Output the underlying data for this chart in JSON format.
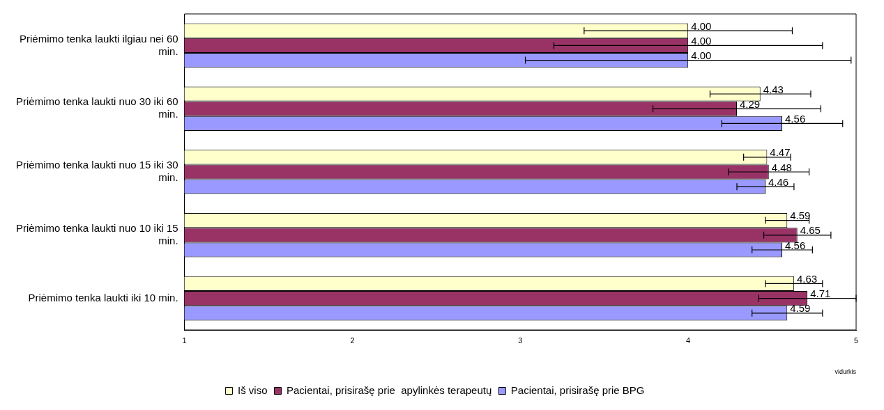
{
  "chart_data": {
    "type": "bar",
    "orientation": "horizontal",
    "xlabel": "vidurkis",
    "categories": [
      "Priėmimo tenka laukti ilgiau nei 60 min.",
      "Priėmimo tenka laukti nuo 30 iki 60 min.",
      "Priėmimo tenka laukti nuo 15 iki 30 min.",
      "Priėmimo tenka laukti nuo 10 iki 15 min.",
      "Priėmimo tenka laukti iki 10 min."
    ],
    "series": [
      {
        "name": "Pacientai, prisirašę prie BPG",
        "color": "#9999ff",
        "values": [
          4.0,
          4.56,
          4.46,
          4.56,
          4.59
        ],
        "value_labels": [
          "4.00",
          "4.56",
          "4.46",
          "4.56",
          "4.59"
        ],
        "errors": [
          0.97,
          0.36,
          0.17,
          0.18,
          0.21
        ]
      },
      {
        "name": "Pacientai, prisirašę prie  apylinkės terapeutų",
        "color": "#993366",
        "values": [
          4.0,
          4.29,
          4.48,
          4.65,
          4.71
        ],
        "value_labels": [
          "4.00",
          "4.29",
          "4.48",
          "4.65",
          "4.71"
        ],
        "errors": [
          0.8,
          0.5,
          0.24,
          0.2,
          0.29
        ]
      },
      {
        "name": "Iš viso",
        "color": "#ffffcc",
        "values": [
          4.0,
          4.43,
          4.47,
          4.59,
          4.63
        ],
        "value_labels": [
          "4.00",
          "4.43",
          "4.47",
          "4.59",
          "4.63"
        ],
        "errors": [
          0.62,
          0.3,
          0.14,
          0.13,
          0.17
        ]
      }
    ],
    "data_labels": true,
    "xlim": [
      1,
      5
    ],
    "xticks": [
      1,
      2,
      3,
      4,
      5
    ],
    "grid": false,
    "legend": "bottom"
  }
}
